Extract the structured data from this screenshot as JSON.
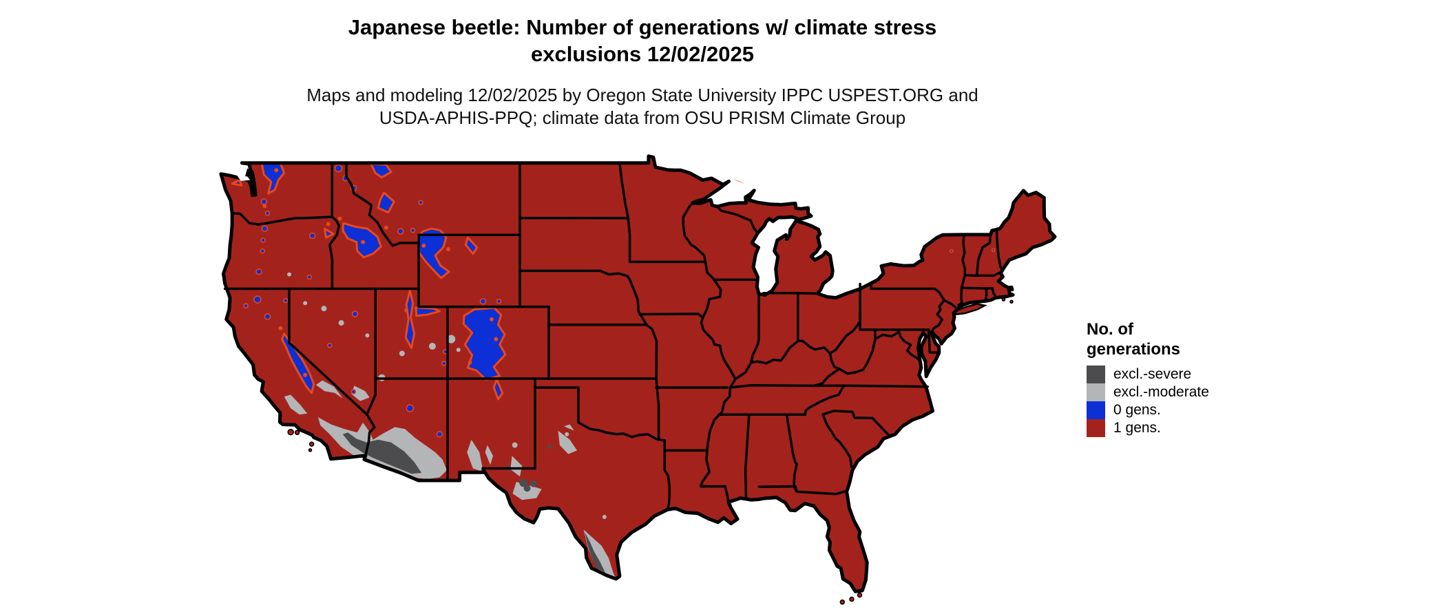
{
  "header": {
    "title_line1": "Japanese beetle: Number of generations w/ climate stress",
    "title_line2": "exclusions 12/02/2025",
    "subtitle_line1": "Maps and modeling 12/02/2025 by Oregon State University IPPC USPEST.ORG and",
    "subtitle_line2": "USDA-APHIS-PPQ; climate data from OSU PRISM Climate Group"
  },
  "legend": {
    "title_line1": "No. of",
    "title_line2": "generations",
    "items": [
      {
        "label": "excl.-severe",
        "color": "#4C4C4E"
      },
      {
        "label": "excl.-moderate",
        "color": "#B4B5B7"
      },
      {
        "label": "0 gens.",
        "color": "#0D2FD6"
      },
      {
        "label": "1 gens.",
        "color": "#A3231C"
      }
    ]
  },
  "map": {
    "region": "Contiguous United States",
    "background": "#FFFFFF",
    "state_border_color": "#000000",
    "colors": {
      "one_generation": "#A3231C",
      "zero_generations": "#0D2FD6",
      "excl_severe": "#4C4C4E",
      "excl_moderate": "#B4B5B7",
      "fringe_orange": "#E8481A",
      "water_inland": "#000000"
    }
  }
}
